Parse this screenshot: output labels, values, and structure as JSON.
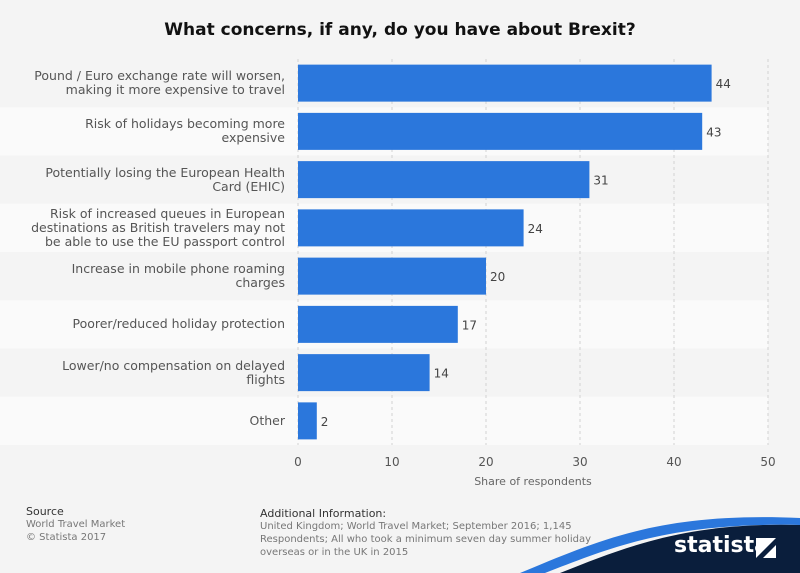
{
  "chart_data": {
    "type": "bar",
    "orientation": "horizontal",
    "title": "What concerns, if any, do you have about Brexit?",
    "categories": [
      "Pound / Euro exchange rate will worsen, making it more expensive to travel",
      "Risk of holidays becoming more expensive",
      "Potentially losing the European Health Card (EHIC)",
      "Risk of increased queues in European destinations as British travelers may not be able to use the EU passport control",
      "Increase in mobile phone roaming charges",
      "Poorer/reduced holiday protection",
      "Lower/no compensation on delayed flights",
      "Other"
    ],
    "values": [
      44,
      43,
      31,
      24,
      20,
      17,
      14,
      2
    ],
    "xlabel": "Share of respondents",
    "ylabel": "",
    "xlim": [
      0,
      50
    ],
    "ticks": [
      0,
      10,
      20,
      30,
      40,
      50
    ],
    "grid": true,
    "bar_color": "#2b77dc",
    "band_colors": [
      "#f4f4f4",
      "#fafafa"
    ]
  },
  "footer": {
    "source_heading": "Source",
    "source_lines": [
      "World Travel Market",
      "© Statista 2017"
    ],
    "info_heading": "Additional Information:",
    "info_text": "United Kingdom; World Travel Market; September 2016; 1,145 Respondents; All who took a minimum seven day summer holiday overseas or in the UK in 2015"
  },
  "brand": {
    "name": "statista",
    "color": "#0a1e3c",
    "wave_color": "#2b77dc"
  }
}
